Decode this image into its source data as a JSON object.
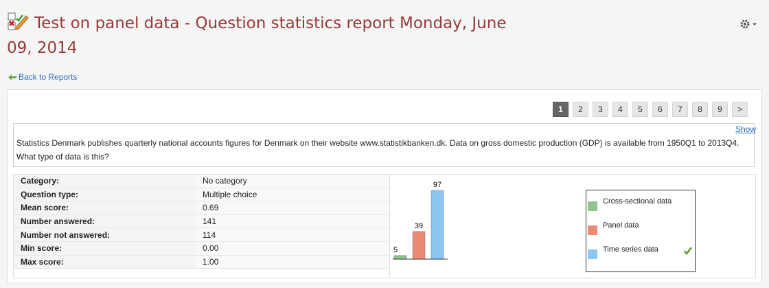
{
  "header": {
    "title": "Test on panel data - Question statistics report Monday, June 09, 2014"
  },
  "back_link": "Back to Reports",
  "pagination": [
    "1",
    "2",
    "3",
    "4",
    "5",
    "6",
    "7",
    "8",
    "9",
    ">"
  ],
  "show_link": "Show",
  "question": "Statistics Denmark publishes quarterly national accounts figures for Denmark on their website www.statistikbanken.dk. Data on gross domestic production (GDP) is available from 1950Q1 to 2013Q4. What type of data is this?",
  "stats": {
    "rows": [
      [
        "Category:",
        "No category"
      ],
      [
        "Question type:",
        "Multiple choice"
      ],
      [
        "Mean score:",
        "0.69"
      ],
      [
        "Number answered:",
        "141"
      ],
      [
        "Number not answered:",
        "114"
      ],
      [
        "Min score:",
        "0.00"
      ],
      [
        "Max score:",
        "1.00"
      ]
    ]
  },
  "chart": {
    "type": "bar",
    "categories": [
      "Cross-sectional data",
      "Panel data",
      "Time series data"
    ],
    "values": [
      5,
      39,
      97
    ],
    "colors": [
      "#8fc48f",
      "#ec8a78",
      "#8cc6f2"
    ]
  }
}
